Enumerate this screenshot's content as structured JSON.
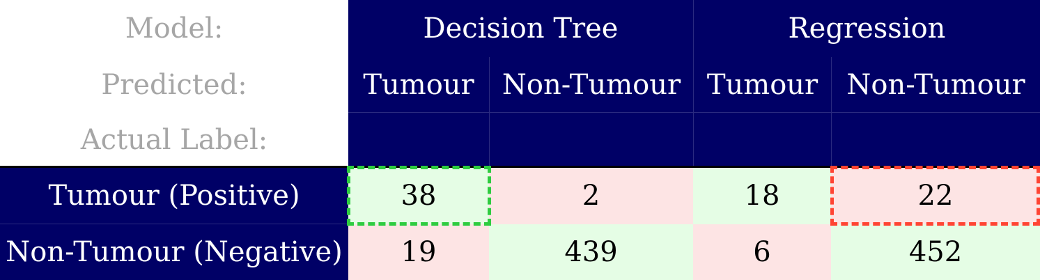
{
  "labels": {
    "model": "Model:",
    "predicted": "Predicted:",
    "actual": "Actual Label:"
  },
  "models": [
    "Decision Tree",
    "Regression"
  ],
  "predicted": [
    "Tumour",
    "Non-Tumour",
    "Tumour",
    "Non-Tumour"
  ],
  "rows": [
    {
      "label": "Tumour (Positive)",
      "values": [
        "38",
        "2",
        "18",
        "22"
      ]
    },
    {
      "label": "Non-Tumour (Negative)",
      "values": [
        "19",
        "439",
        "6",
        "452"
      ]
    }
  ],
  "colors": {
    "header": "#000066",
    "correct": "#e5fde5",
    "incorrect": "#fde4e4",
    "highlight_good": "#2ecc40",
    "highlight_bad": "#ff4433"
  }
}
